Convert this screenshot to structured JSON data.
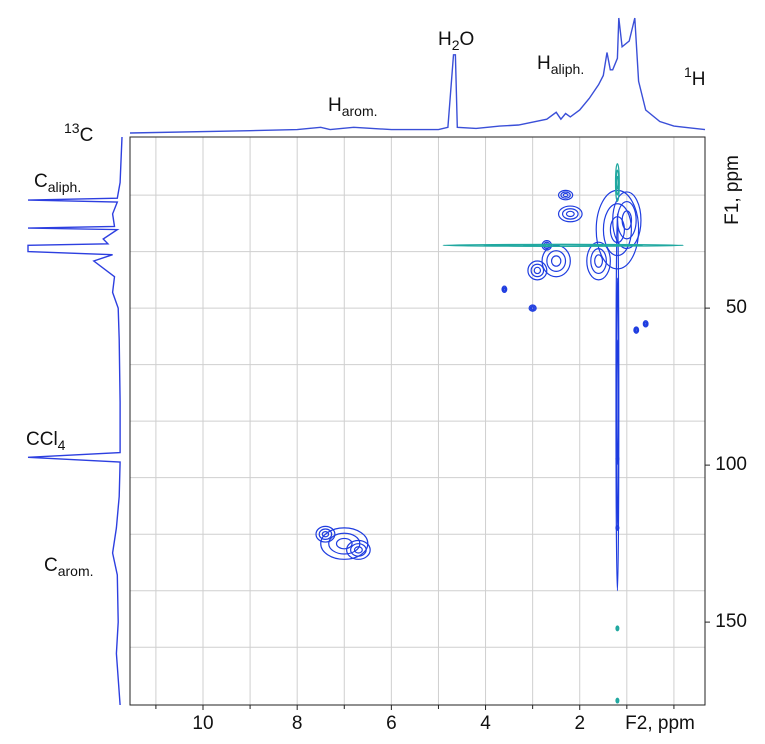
{
  "chart_data": {
    "type": "nmr2d",
    "xlabel": "F2, ppm",
    "ylabel": "F1, ppm",
    "xlim": [
      11.55,
      -0.66
    ],
    "ylim": [
      -4.5,
      176.4
    ],
    "xticks": [
      10,
      8,
      6,
      4,
      2
    ],
    "xminor": [
      11,
      9,
      7,
      5,
      3,
      1,
      0
    ],
    "yticks": [
      50,
      100,
      150
    ],
    "ygrid": [
      14,
      32,
      50,
      68,
      86,
      104,
      122,
      140,
      158
    ],
    "grid": true,
    "annotations": {
      "h_arom": {
        "main": "H",
        "sub": "arom."
      },
      "h2o": {
        "main": "H",
        "sub": "2",
        "end": "O"
      },
      "h_aliph": {
        "main": "H",
        "sub": "aliph."
      },
      "h1": {
        "sup": "1",
        "main": "H"
      },
      "c13": {
        "sup": "13",
        "main": "C"
      },
      "c_aliph": {
        "main": "C",
        "sub": "aliph."
      },
      "ccl4": {
        "main": "CCl",
        "sub": "4"
      },
      "c_arom": {
        "main": "C",
        "sub": "arom."
      }
    },
    "proton_spectrum": {
      "color": "#3a4fd8",
      "x": [
        11.55,
        9,
        8,
        7.5,
        7.3,
        6.8,
        6,
        5,
        4.8,
        4.68,
        4.64,
        4.6,
        4.2,
        3.7,
        3.3,
        2.7,
        2.5,
        2.4,
        2.3,
        2.2,
        2.0,
        1.8,
        1.6,
        1.5,
        1.42,
        1.35,
        1.3,
        1.2,
        1.17,
        1.1,
        0.95,
        0.83,
        0.75,
        0.6,
        0.3,
        0,
        -0.66
      ],
      "values": [
        0,
        2,
        3,
        5,
        3,
        5,
        3,
        3,
        5,
        68,
        68,
        5,
        4,
        6,
        7,
        12,
        18,
        12,
        17,
        14,
        20,
        30,
        42,
        50,
        70,
        55,
        55,
        65,
        100,
        75,
        80,
        100,
        45,
        20,
        10,
        6,
        3
      ]
    },
    "carbon_spectrum": {
      "color": "#2d3fe0",
      "y": [
        -4.5,
        10,
        15,
        15.6,
        16.2,
        20,
        24,
        24.5,
        25,
        28,
        29.5,
        30,
        31,
        32,
        33,
        35,
        40,
        45,
        50,
        60,
        80,
        96,
        97.5,
        99,
        110,
        120,
        128,
        135,
        150,
        160,
        176.4
      ],
      "values": [
        0,
        2,
        5,
        100,
        5,
        10,
        8,
        100,
        5,
        20,
        15,
        100,
        100,
        100,
        10,
        30,
        8,
        10,
        4,
        3,
        2,
        2,
        100,
        2,
        3,
        6,
        10,
        5,
        4,
        6,
        2
      ]
    },
    "contours": [
      {
        "color": "#1f3de0",
        "peaks": [
          {
            "x": 7.0,
            "y": 125,
            "w": 1.0,
            "h": 10
          },
          {
            "x": 7.4,
            "y": 122,
            "w": 0.4,
            "h": 5
          },
          {
            "x": 6.7,
            "y": 127,
            "w": 0.5,
            "h": 6
          },
          {
            "x": 1.2,
            "y": 25,
            "w": 0.9,
            "h": 25
          },
          {
            "x": 1.0,
            "y": 22,
            "w": 0.6,
            "h": 18
          },
          {
            "x": 1.6,
            "y": 35,
            "w": 0.5,
            "h": 12
          },
          {
            "x": 2.5,
            "y": 35,
            "w": 0.6,
            "h": 10
          },
          {
            "x": 2.9,
            "y": 38,
            "w": 0.4,
            "h": 6
          },
          {
            "x": 2.2,
            "y": 20,
            "w": 0.5,
            "h": 5
          },
          {
            "x": 2.3,
            "y": 14,
            "w": 0.3,
            "h": 3
          },
          {
            "x": 3.0,
            "y": 50,
            "w": 0.15,
            "h": 2
          },
          {
            "x": 3.6,
            "y": 44,
            "w": 0.1,
            "h": 2
          },
          {
            "x": 2.7,
            "y": 30,
            "w": 0.2,
            "h": 3
          },
          {
            "x": 0.6,
            "y": 55,
            "w": 0.1,
            "h": 2
          },
          {
            "x": 0.8,
            "y": 57,
            "w": 0.1,
            "h": 2
          },
          {
            "x": 1.2,
            "y": 80,
            "w": 0.06,
            "h": 120
          },
          {
            "x": 1.2,
            "y": 98,
            "w": 0.06,
            "h": 1.5
          },
          {
            "x": 1.2,
            "y": 120,
            "w": 0.06,
            "h": 1.5
          }
        ]
      },
      {
        "color": "#20a8a0",
        "peaks": [
          {
            "x": 2.35,
            "y": 30,
            "w": 5.1,
            "h": 0.6
          },
          {
            "x": 1.2,
            "y": 10,
            "w": 0.08,
            "h": 12
          },
          {
            "x": 1.2,
            "y": 152,
            "w": 0.06,
            "h": 1.5
          },
          {
            "x": 1.2,
            "y": 175,
            "w": 0.06,
            "h": 1.5
          }
        ]
      }
    ]
  }
}
